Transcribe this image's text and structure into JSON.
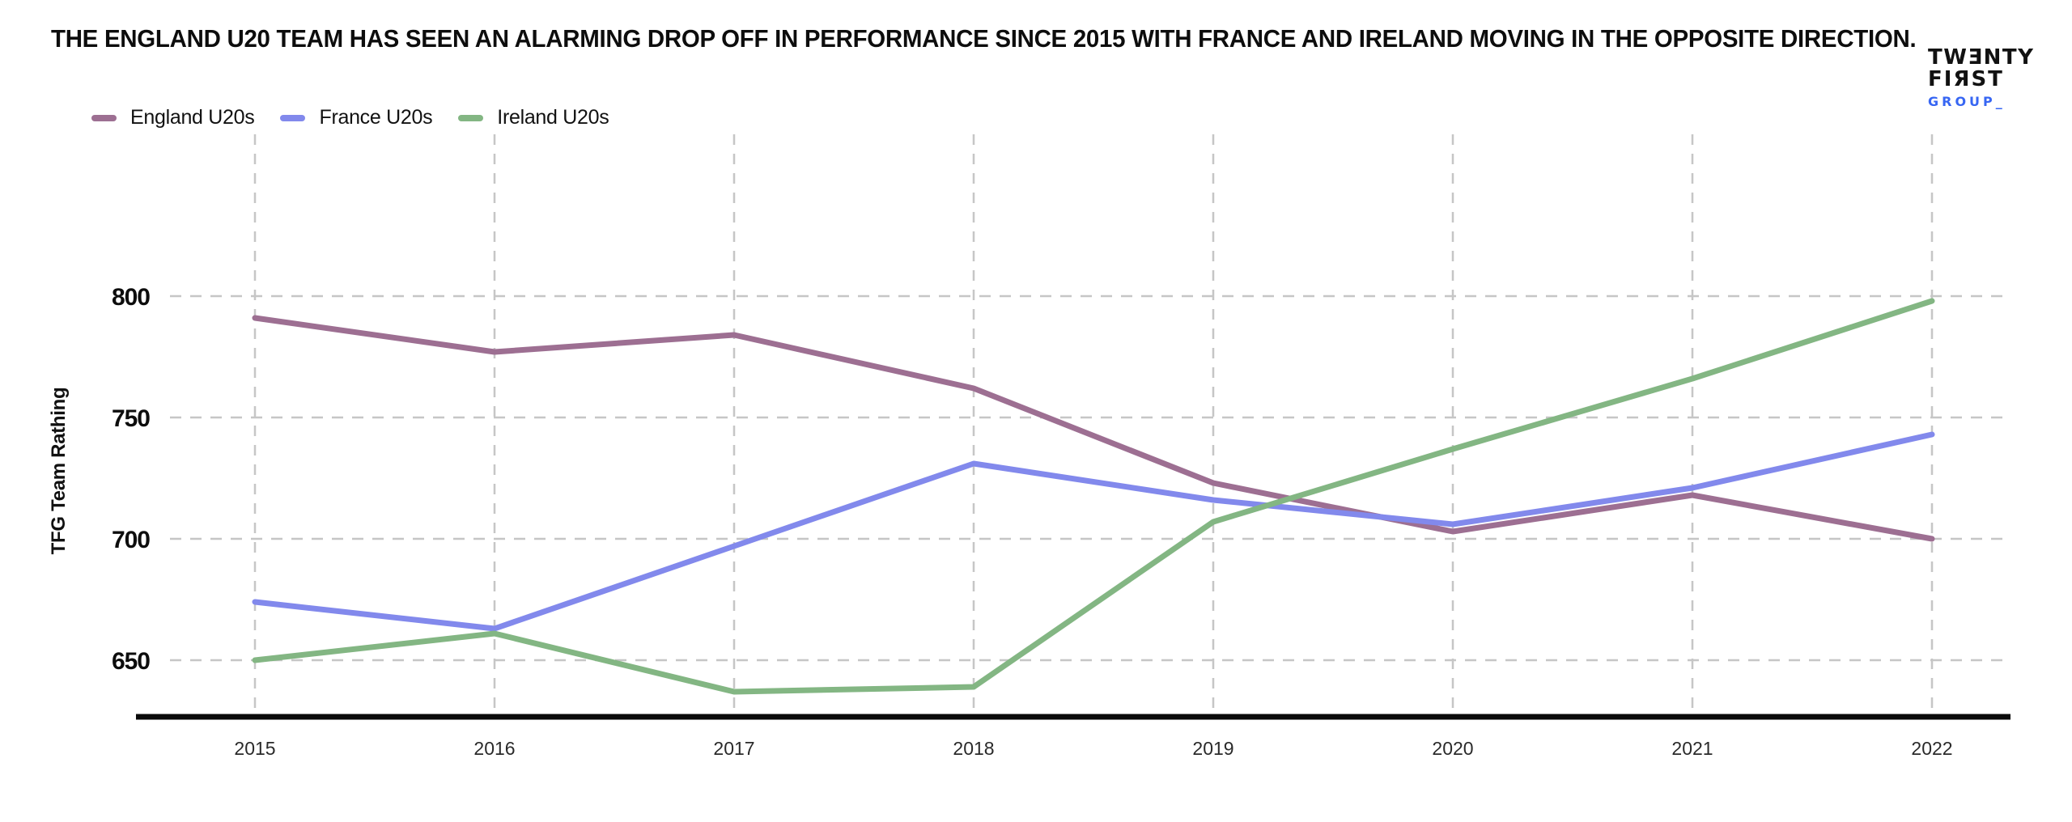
{
  "header": {
    "title": "THE ENGLAND U20 TEAM HAS SEEN AN ALARMING DROP OFF IN PERFORMANCE SINCE 2015 WITH FRANCE AND IRELAND MOVING IN THE OPPOSITE DIRECTION."
  },
  "logo": {
    "line1": "TWƎNTY",
    "line2": "FIЯST",
    "line3": "GROUP_",
    "accent_color": "#3766f3"
  },
  "chart_data": {
    "type": "line",
    "title": "THE ENGLAND U20 TEAM HAS SEEN AN ALARMING DROP OFF IN PERFORMANCE SINCE 2015 WITH FRANCE AND IRELAND MOVING IN THE OPPOSITE DIRECTION.",
    "xlabel": "",
    "ylabel": "TFG Team Rathing",
    "x": [
      2015,
      2016,
      2017,
      2018,
      2019,
      2020,
      2021,
      2022
    ],
    "y_ticks": [
      650,
      700,
      750,
      800
    ],
    "ylim": [
      626,
      867
    ],
    "grid": true,
    "legend_position": "top-left",
    "legend": [
      "England U20s",
      "France U20s",
      "Ireland U20s"
    ],
    "series": [
      {
        "name": "England U20s",
        "color": "#9d6f92",
        "values": [
          791,
          777,
          784,
          762,
          723,
          703,
          718,
          700
        ]
      },
      {
        "name": "France U20s",
        "color": "#8289ec",
        "values": [
          674,
          663,
          697,
          731,
          716,
          706,
          721,
          743
        ]
      },
      {
        "name": "Ireland U20s",
        "color": "#83b683",
        "values": [
          650,
          661,
          637,
          639,
          707,
          737,
          766,
          798
        ]
      }
    ],
    "colors": {
      "gridline": "#c6c6c6",
      "axis": "#0a0a0a"
    }
  }
}
